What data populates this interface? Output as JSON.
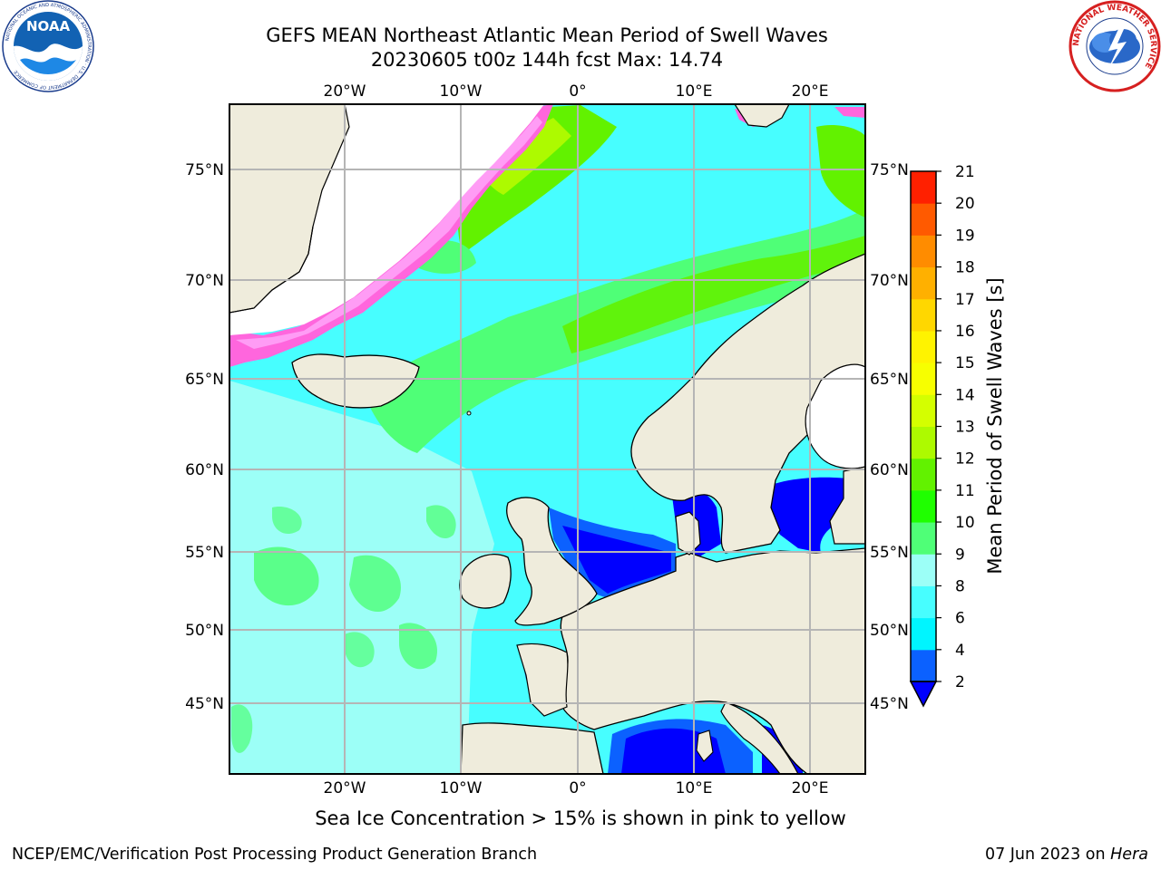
{
  "header": {
    "title_line1": "GEFS MEAN Northeast Atlantic Mean Period of Swell Waves",
    "title_line2": "20230605 t00z 144h fcst   Max: 14.74"
  },
  "logos": {
    "left": "NOAA",
    "left_ring_text": "NATIONAL OCEANIC AND ATMOSPHERIC ADMINISTRATION · U.S. DEPARTMENT OF COMMERCE",
    "right_ring_text": "NATIONAL WEATHER SERVICE"
  },
  "map": {
    "top_longitude_labels": [
      "20°W",
      "10°W",
      "0°",
      "10°E",
      "20°E"
    ],
    "bottom_longitude_labels": [
      "20°W",
      "10°W",
      "0°",
      "10°E",
      "20°E"
    ],
    "left_latitude_labels": [
      "75°N",
      "70°N",
      "65°N",
      "60°N",
      "55°N",
      "50°N",
      "45°N"
    ],
    "right_latitude_labels": [
      "75°N",
      "70°N",
      "65°N",
      "60°N",
      "55°N",
      "50°N",
      "45°N"
    ]
  },
  "colorbar": {
    "label": "Mean Period of Swell Waves [s]",
    "ticks": [
      "2",
      "4",
      "6",
      "8",
      "9",
      "10",
      "11",
      "12",
      "13",
      "14",
      "15",
      "16",
      "17",
      "18",
      "19",
      "20",
      "21"
    ],
    "colors": [
      "#0b61ff",
      "#00f5ff",
      "#47feff",
      "#9cfff7",
      "#4fff77",
      "#1fff00",
      "#62f200",
      "#adfa00",
      "#d4ff00",
      "#f7ff00",
      "#fff300",
      "#ffd700",
      "#ffb000",
      "#ff8c00",
      "#ff5a00",
      "#ff2000"
    ],
    "under_color": "#0000ff"
  },
  "caption": "Sea Ice Concentration > 15% is shown in pink to yellow",
  "footer": {
    "left": "NCEP/EMC/Verification Post Processing Product Generation Branch",
    "date": "07 Jun 2023 on ",
    "host": "Hera"
  }
}
